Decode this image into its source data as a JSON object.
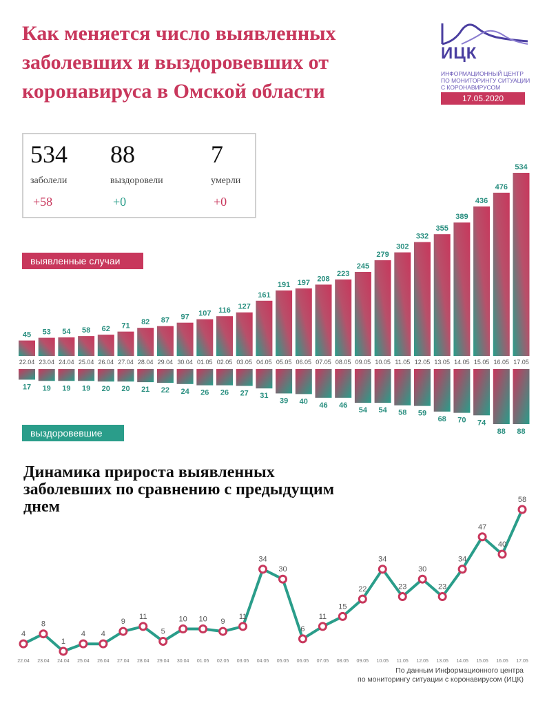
{
  "header": {
    "title": "Как меняется число выявленных заболевших и выздоровевших от коронавируса в Омской области"
  },
  "logo": {
    "abbr": "ИЦК",
    "name": "Информационный центр по мониторингу ситуации с коронавирусом",
    "date": "17.05.2020",
    "color": "#4a3ea0"
  },
  "stats": {
    "cases": {
      "value": "534",
      "label": "заболели",
      "delta": "+58"
    },
    "recovered": {
      "value": "88",
      "label": "выздоровели",
      "delta": "+0"
    },
    "deaths": {
      "value": "7",
      "label": "умерли",
      "delta": "+0"
    }
  },
  "colors": {
    "accent": "#c8375c",
    "teal": "#2a9d8a",
    "label_teal": "#2a8f80"
  },
  "labels": {
    "cases_tag": "выявленные случаи",
    "recovered_tag": "выздоровевшие",
    "subtitle": "Динамика прироста выявленных заболевших по сравнению с предыдущим днем",
    "source_line1": "По данным Информационного центра",
    "source_line2": "по мониторингу ситуации с коронавирусом (ИЦК)"
  },
  "chart_data": [
    {
      "type": "bar",
      "categories": [
        "22.04",
        "23.04",
        "24.04",
        "25.04",
        "26.04",
        "27.04",
        "28.04",
        "29.04",
        "30.04",
        "01.05",
        "02.05",
        "03.05",
        "04.05",
        "05.05",
        "06.05",
        "07.05",
        "08.05",
        "09.05",
        "10.05",
        "11.05",
        "12.05",
        "13.05",
        "14.05",
        "15.05",
        "16.05",
        "17.05"
      ],
      "series": [
        {
          "name": "выявленные случаи",
          "values": [
            45,
            53,
            54,
            58,
            62,
            71,
            82,
            87,
            97,
            107,
            116,
            127,
            161,
            191,
            197,
            208,
            223,
            245,
            279,
            302,
            332,
            355,
            389,
            436,
            476,
            534
          ]
        },
        {
          "name": "выздоровевшие",
          "values": [
            17,
            19,
            19,
            19,
            20,
            20,
            21,
            22,
            24,
            26,
            26,
            27,
            31,
            39,
            40,
            46,
            46,
            54,
            54,
            58,
            59,
            68,
            70,
            74,
            88,
            88
          ]
        }
      ]
    },
    {
      "type": "line",
      "title": "Динамика прироста выявленных заболевших по сравнению с предыдущим днем",
      "categories": [
        "22.04",
        "23.04",
        "24.04",
        "25.04",
        "26.04",
        "27.04",
        "28.04",
        "29.04",
        "30.04",
        "01.05",
        "02.05",
        "03.05",
        "04.05",
        "05.05",
        "06.05",
        "07.05",
        "08.05",
        "09.05",
        "10.05",
        "11.05",
        "12.05",
        "13.05",
        "14.05",
        "15.05",
        "16.05",
        "17.05"
      ],
      "values": [
        4,
        8,
        1,
        4,
        4,
        9,
        11,
        5,
        10,
        10,
        9,
        11,
        34,
        30,
        6,
        11,
        15,
        22,
        34,
        23,
        30,
        23,
        34,
        47,
        40,
        58
      ]
    }
  ]
}
